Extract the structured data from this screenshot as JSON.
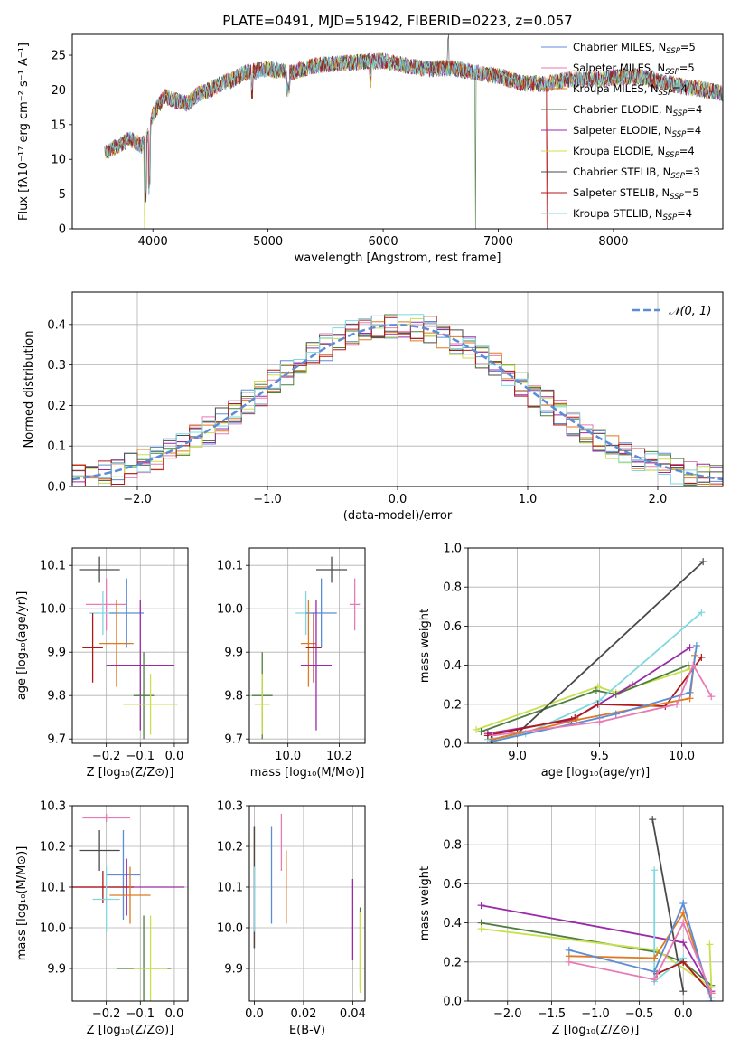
{
  "colors": {
    "chabrier_miles": "#5b8dd6",
    "salpeter_miles": "#e87ab4",
    "kroupa_miles": "#e0791f",
    "chabrier_elodie": "#4d7d3f",
    "salpeter_elodie": "#9b2aa8",
    "kroupa_elodie": "#c8e04a",
    "chabrier_stelib": "#4a4a4a",
    "salpeter_stelib": "#b01818",
    "kroupa_stelib": "#7fd8e0",
    "normal_curve": "#5b8dd6",
    "grid": "#b0b0b0"
  },
  "chart_data": [
    {
      "id": "spectrum",
      "type": "line",
      "title": "PLATE=0491, MJD=51942, FIBERID=0223, z=0.057",
      "xlabel": "wavelength [Angstrom, rest frame]",
      "ylabel": "Flux [fλ10⁻¹⁷ erg cm⁻² s⁻¹ A⁻¹]",
      "xlim": [
        3300,
        8950
      ],
      "ylim": [
        0,
        28
      ],
      "xticks": [
        4000,
        5000,
        6000,
        7000,
        8000
      ],
      "yticks": [
        0,
        5,
        10,
        15,
        20,
        25
      ],
      "grid": false,
      "legend_position": "top-right",
      "continuum": {
        "x": [
          3580,
          3700,
          3800,
          3900,
          3950,
          4000,
          4100,
          4200,
          4300,
          4400,
          4500,
          4600,
          4700,
          4800,
          5000,
          5200,
          5400,
          5600,
          5800,
          6000,
          6200,
          6400,
          6600,
          6800,
          7000,
          7200,
          7400,
          7600,
          7800,
          8000,
          8200,
          8400,
          8600,
          8800,
          8950
        ],
        "y": [
          11.0,
          12.0,
          13.0,
          12.0,
          13.0,
          16.5,
          19.0,
          18.5,
          18.0,
          19.5,
          20.0,
          21.0,
          21.5,
          22.5,
          23.0,
          22.5,
          23.5,
          23.8,
          24.0,
          24.2,
          23.5,
          23.0,
          23.2,
          22.5,
          22.0,
          21.0,
          20.8,
          21.5,
          21.5,
          21.8,
          22.0,
          21.2,
          20.5,
          20.0,
          19.5
        ]
      },
      "series": [
        {
          "name": "Chabrier MILES, N_SSP=5",
          "label_main": "Chabrier MILES, N",
          "label_sub": "SSP",
          "label_tail": "=5",
          "color_key": "chabrier_miles"
        },
        {
          "name": "Salpeter MILES, N_SSP=5",
          "label_main": "Salpeter MILES, N",
          "label_sub": "SSP",
          "label_tail": "=5",
          "color_key": "salpeter_miles"
        },
        {
          "name": "Kroupa MILES, N_SSP=4",
          "label_main": "Kroupa MILES, N",
          "label_sub": "SSP",
          "label_tail": "=4",
          "color_key": "kroupa_miles"
        },
        {
          "name": "Chabrier ELODIE, N_SSP=4",
          "label_main": "Chabrier ELODIE, N",
          "label_sub": "SSP",
          "label_tail": "=4",
          "color_key": "chabrier_elodie"
        },
        {
          "name": "Salpeter ELODIE, N_SSP=4",
          "label_main": "Salpeter ELODIE, N",
          "label_sub": "SSP",
          "label_tail": "=4",
          "color_key": "salpeter_elodie"
        },
        {
          "name": "Kroupa ELODIE, N_SSP=4",
          "label_main": "Kroupa ELODIE, N",
          "label_sub": "SSP",
          "label_tail": "=4",
          "color_key": "kroupa_elodie"
        },
        {
          "name": "Chabrier STELIB, N_SSP=3",
          "label_main": "Chabrier STELIB, N",
          "label_sub": "SSP",
          "label_tail": "=3",
          "color_key": "chabrier_stelib"
        },
        {
          "name": "Salpeter STELIB, N_SSP=5",
          "label_main": "Salpeter STELIB, N",
          "label_sub": "SSP",
          "label_tail": "=5",
          "color_key": "salpeter_stelib"
        },
        {
          "name": "Kroupa STELIB, N_SSP=4",
          "label_main": "Kroupa STELIB, N",
          "label_sub": "SSP",
          "label_tail": "=4",
          "color_key": "kroupa_stelib"
        }
      ]
    },
    {
      "id": "residuals",
      "type": "histogram",
      "xlabel": "(data-model)/error",
      "ylabel": "Normed distribution",
      "xlim": [
        -2.5,
        2.5
      ],
      "ylim": [
        0,
        0.48
      ],
      "xticks": [
        -2,
        -1,
        0,
        1,
        2
      ],
      "yticks": [
        0.0,
        0.1,
        0.2,
        0.3,
        0.4
      ],
      "grid": true,
      "bin_width": 0.1,
      "legend_label": "𝒩(0, 1)",
      "legend_position": "top-right"
    },
    {
      "id": "age_vs_Z",
      "type": "errorbar",
      "xlabel": "Z [log₁₀(Z/Z⊙)]",
      "ylabel": "age  [log₁₀(age/yr)]",
      "xlim": [
        -0.3,
        0.04
      ],
      "ylim": [
        9.69,
        10.14
      ],
      "xticks": [
        -0.2,
        -0.1,
        0.0
      ],
      "yticks": [
        9.7,
        9.8,
        9.9,
        10.0,
        10.1
      ],
      "grid": true,
      "points": [
        {
          "color_key": "chabrier_stelib",
          "x": -0.22,
          "xerr": 0.06,
          "y": 10.09,
          "yerr": 0.03
        },
        {
          "color_key": "salpeter_miles",
          "x": -0.2,
          "xerr": 0.06,
          "y": 10.01,
          "yerr": 0.06
        },
        {
          "color_key": "kroupa_stelib",
          "x": -0.21,
          "xerr": 0.04,
          "y": 9.99,
          "yerr": 0.05
        },
        {
          "color_key": "chabrier_miles",
          "x": -0.14,
          "xerr": 0.05,
          "y": 9.99,
          "yerr": 0.08
        },
        {
          "color_key": "kroupa_miles",
          "x": -0.17,
          "xerr": 0.05,
          "y": 9.92,
          "yerr": 0.1
        },
        {
          "color_key": "salpeter_stelib",
          "x": -0.24,
          "xerr": 0.03,
          "y": 9.91,
          "yerr": 0.08
        },
        {
          "color_key": "salpeter_elodie",
          "x": -0.1,
          "xerr": 0.1,
          "y": 9.87,
          "yerr": 0.15
        },
        {
          "color_key": "chabrier_elodie",
          "x": -0.09,
          "xerr": 0.03,
          "y": 9.8,
          "yerr": 0.1
        },
        {
          "color_key": "kroupa_elodie",
          "x": -0.07,
          "xerr": 0.08,
          "y": 9.78,
          "yerr": 0.07
        }
      ]
    },
    {
      "id": "age_vs_mass",
      "type": "errorbar",
      "xlabel": "mass [log₁₀(M/M⊙)]",
      "ylabel": "",
      "xlim": [
        9.85,
        10.3
      ],
      "ylim": [
        9.69,
        10.14
      ],
      "xticks": [
        10.0,
        10.2
      ],
      "yticks": [
        9.7,
        9.8,
        9.9,
        10.0,
        10.1
      ],
      "grid": true,
      "points": [
        {
          "color_key": "chabrier_stelib",
          "x": 10.17,
          "xerr": 0.06,
          "y": 10.09,
          "yerr": 0.03
        },
        {
          "color_key": "salpeter_miles",
          "x": 10.26,
          "xerr": 0.02,
          "y": 10.01,
          "yerr": 0.06
        },
        {
          "color_key": "kroupa_stelib",
          "x": 10.07,
          "xerr": 0.04,
          "y": 9.99,
          "yerr": 0.05
        },
        {
          "color_key": "chabrier_miles",
          "x": 10.13,
          "xerr": 0.06,
          "y": 9.99,
          "yerr": 0.08
        },
        {
          "color_key": "kroupa_miles",
          "x": 10.08,
          "xerr": 0.03,
          "y": 9.92,
          "yerr": 0.1
        },
        {
          "color_key": "salpeter_stelib",
          "x": 10.1,
          "xerr": 0.03,
          "y": 9.91,
          "yerr": 0.08
        },
        {
          "color_key": "salpeter_elodie",
          "x": 10.11,
          "xerr": 0.06,
          "y": 9.87,
          "yerr": 0.15
        },
        {
          "color_key": "chabrier_elodie",
          "x": 9.9,
          "xerr": 0.04,
          "y": 9.8,
          "yerr": 0.1
        },
        {
          "color_key": "kroupa_elodie",
          "x": 9.9,
          "xerr": 0.03,
          "y": 9.78,
          "yerr": 0.07
        }
      ]
    },
    {
      "id": "weight_vs_age",
      "type": "line",
      "xlabel": "age  [log₁₀(age/yr)]",
      "ylabel": "mass weight",
      "xlim": [
        8.7,
        10.25
      ],
      "ylim": [
        0,
        1.0
      ],
      "xticks": [
        9.0,
        9.5,
        10.0
      ],
      "yticks": [
        0.0,
        0.2,
        0.4,
        0.6,
        0.8,
        1.0
      ],
      "grid": true,
      "series": [
        {
          "color_key": "kroupa_elodie",
          "x": [
            8.75,
            9.49,
            9.6,
            10.05
          ],
          "y": [
            0.07,
            0.29,
            0.26,
            0.38
          ]
        },
        {
          "color_key": "chabrier_elodie",
          "x": [
            8.78,
            9.48,
            9.6,
            10.04
          ],
          "y": [
            0.06,
            0.27,
            0.25,
            0.4
          ]
        },
        {
          "color_key": "salpeter_elodie",
          "x": [
            8.82,
            9.33,
            9.7,
            10.05
          ],
          "y": [
            0.05,
            0.12,
            0.3,
            0.49
          ]
        },
        {
          "color_key": "chabrier_stelib",
          "x": [
            8.84,
            9.0,
            10.13
          ],
          "y": [
            0.02,
            0.05,
            0.93
          ]
        },
        {
          "color_key": "kroupa_stelib",
          "x": [
            8.82,
            9.05,
            9.5,
            10.12
          ],
          "y": [
            0.02,
            0.05,
            0.22,
            0.67
          ]
        },
        {
          "color_key": "salpeter_stelib",
          "x": [
            8.82,
            9.35,
            9.49,
            9.9,
            10.12
          ],
          "y": [
            0.04,
            0.13,
            0.2,
            0.19,
            0.44
          ]
        },
        {
          "color_key": "kroupa_miles",
          "x": [
            8.85,
            9.36,
            10.05,
            10.08
          ],
          "y": [
            0.02,
            0.12,
            0.23,
            0.45
          ]
        },
        {
          "color_key": "chabrier_miles",
          "x": [
            8.85,
            9.5,
            9.6,
            10.05,
            10.09
          ],
          "y": [
            0.01,
            0.13,
            0.15,
            0.26,
            0.5
          ]
        },
        {
          "color_key": "salpeter_miles",
          "x": [
            8.85,
            9.5,
            9.97,
            10.07,
            10.18
          ],
          "y": [
            0.04,
            0.11,
            0.2,
            0.4,
            0.24
          ]
        }
      ]
    },
    {
      "id": "mass_vs_Z",
      "type": "errorbar",
      "xlabel": "Z [log₁₀(Z/Z⊙)]",
      "ylabel": "mass [log₁₀(M/M⊙)]",
      "xlim": [
        -0.3,
        0.04
      ],
      "ylim": [
        9.82,
        10.3
      ],
      "xticks": [
        -0.2,
        -0.1,
        0.0
      ],
      "yticks": [
        9.9,
        10.0,
        10.1,
        10.2,
        10.3
      ],
      "grid": true,
      "points": [
        {
          "color_key": "salpeter_miles",
          "x": -0.2,
          "xerr": 0.07,
          "y": 10.27,
          "yerr": 0.01
        },
        {
          "color_key": "chabrier_stelib",
          "x": -0.22,
          "xerr": 0.06,
          "y": 10.19,
          "yerr": 0.05
        },
        {
          "color_key": "chabrier_miles",
          "x": -0.15,
          "xerr": 0.05,
          "y": 10.13,
          "yerr": 0.11
        },
        {
          "color_key": "salpeter_elodie",
          "x": -0.14,
          "xerr": 0.17,
          "y": 10.1,
          "yerr": 0.07
        },
        {
          "color_key": "salpeter_stelib",
          "x": -0.21,
          "xerr": 0.09,
          "y": 10.1,
          "yerr": 0.04
        },
        {
          "color_key": "kroupa_miles",
          "x": -0.13,
          "xerr": 0.06,
          "y": 10.08,
          "yerr": 0.07
        },
        {
          "color_key": "kroupa_stelib",
          "x": -0.2,
          "xerr": 0.04,
          "y": 10.07,
          "yerr": 0.08
        },
        {
          "color_key": "chabrier_elodie",
          "x": -0.09,
          "xerr": 0.08,
          "y": 9.9,
          "yerr": 0.13
        },
        {
          "color_key": "kroupa_elodie",
          "x": -0.07,
          "xerr": 0.05,
          "y": 9.9,
          "yerr": 0.13
        }
      ]
    },
    {
      "id": "mass_vs_EBV",
      "type": "errorbar",
      "xlabel": "E(B-V)",
      "ylabel": "",
      "xlim": [
        -0.002,
        0.045
      ],
      "ylim": [
        9.82,
        10.3
      ],
      "xticks": [
        0.0,
        0.02,
        0.04
      ],
      "yticks": [
        9.9,
        10.0,
        10.1,
        10.2,
        10.3
      ],
      "grid": true,
      "points": [
        {
          "color_key": "salpeter_stelib",
          "x": 0.0,
          "xerr": 0,
          "y": 10.1,
          "yerr": 0.15
        },
        {
          "color_key": "chabrier_stelib",
          "x": 0.0,
          "xerr": 0,
          "y": 10.1,
          "yerr": 0.15
        },
        {
          "color_key": "kroupa_stelib",
          "x": 0.0,
          "xerr": 0,
          "y": 10.07,
          "yerr": 0.08
        },
        {
          "color_key": "chabrier_miles",
          "x": 0.007,
          "xerr": 0,
          "y": 10.13,
          "yerr": 0.12
        },
        {
          "color_key": "salpeter_miles",
          "x": 0.011,
          "xerr": 0,
          "y": 10.21,
          "yerr": 0.07
        },
        {
          "color_key": "kroupa_miles",
          "x": 0.013,
          "xerr": 0,
          "y": 10.1,
          "yerr": 0.09
        },
        {
          "color_key": "salpeter_elodie",
          "x": 0.04,
          "xerr": 0,
          "y": 10.02,
          "yerr": 0.1
        },
        {
          "color_key": "chabrier_elodie",
          "x": 0.043,
          "xerr": 0,
          "y": 9.95,
          "yerr": 0.1
        },
        {
          "color_key": "kroupa_elodie",
          "x": 0.043,
          "xerr": 0,
          "y": 9.94,
          "yerr": 0.1
        }
      ]
    },
    {
      "id": "weight_vs_Z",
      "type": "line",
      "xlabel": "Z [log₁₀(Z/Z⊙)]",
      "ylabel": "mass weight",
      "xlim": [
        -2.45,
        0.45
      ],
      "ylim": [
        0,
        1.0
      ],
      "xticks": [
        -2.0,
        -1.5,
        -1.0,
        -0.5,
        0.0
      ],
      "yticks": [
        0.0,
        0.2,
        0.4,
        0.6,
        0.8,
        1.0
      ],
      "grid": true,
      "series": [
        {
          "color_key": "salpeter_elodie",
          "x": [
            -2.3,
            0.0,
            0.32
          ],
          "y": [
            0.49,
            0.3,
            0.05
          ]
        },
        {
          "color_key": "chabrier_elodie",
          "x": [
            -2.3,
            -0.3,
            0.0,
            0.32
          ],
          "y": [
            0.4,
            0.25,
            0.2,
            0.08
          ]
        },
        {
          "color_key": "kroupa_elodie",
          "x": [
            -2.3,
            -0.3,
            0.32,
            0.3
          ],
          "y": [
            0.37,
            0.26,
            0.07,
            0.29
          ]
        },
        {
          "color_key": "chabrier_stelib",
          "x": [
            -0.35,
            0.0
          ],
          "y": [
            0.93,
            0.05
          ]
        },
        {
          "color_key": "kroupa_stelib",
          "x": [
            -0.33,
            -0.33,
            0.0
          ],
          "y": [
            0.67,
            0.1,
            0.22
          ]
        },
        {
          "color_key": "salpeter_stelib",
          "x": [
            -0.3,
            0.0,
            0.32
          ],
          "y": [
            0.14,
            0.2,
            0.04
          ]
        },
        {
          "color_key": "kroupa_miles",
          "x": [
            -1.3,
            -0.33,
            0.0,
            0.32
          ],
          "y": [
            0.23,
            0.22,
            0.45,
            0.02
          ]
        },
        {
          "color_key": "chabrier_miles",
          "x": [
            -1.3,
            -0.33,
            0.0,
            0.32
          ],
          "y": [
            0.26,
            0.15,
            0.5,
            0.0
          ]
        },
        {
          "color_key": "salpeter_miles",
          "x": [
            -1.3,
            -0.33,
            0.0,
            0.32
          ],
          "y": [
            0.2,
            0.11,
            0.4,
            0.04
          ]
        }
      ]
    }
  ]
}
